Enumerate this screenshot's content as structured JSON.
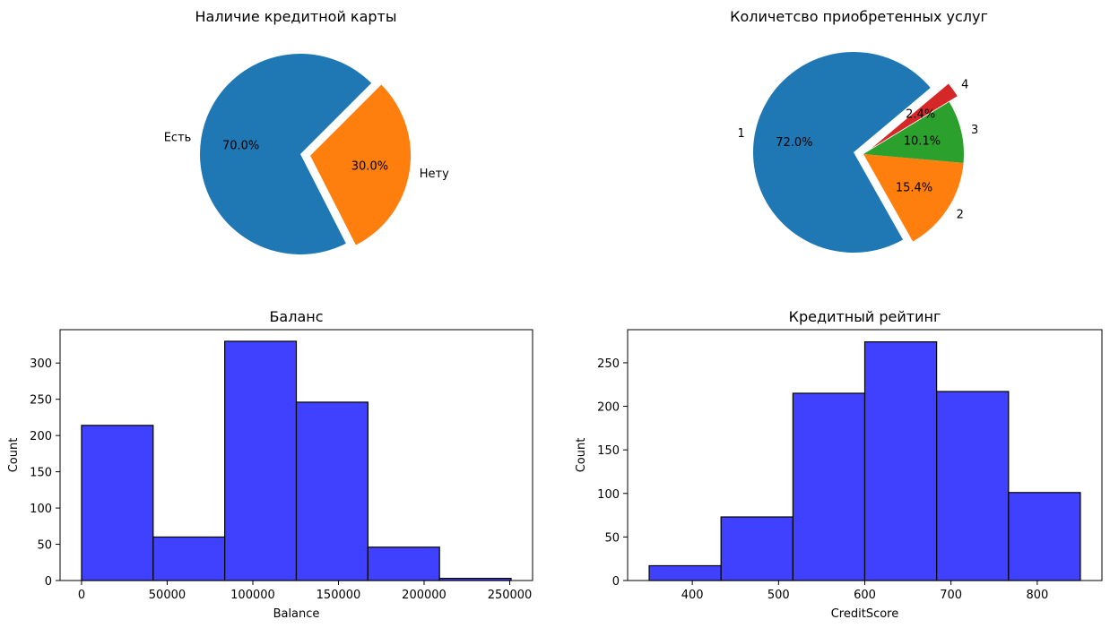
{
  "chart_data": [
    {
      "type": "pie",
      "title": "Наличие кредитной карты",
      "slices": [
        {
          "label": "Есть",
          "pct_label": "70.0%",
          "value": 70.0,
          "color": "#1f77b4",
          "explode": 0
        },
        {
          "label": "Нету",
          "pct_label": "30.0%",
          "value": 30.0,
          "color": "#ff7f0e",
          "explode": 1
        }
      ],
      "startangle_deg": 45
    },
    {
      "type": "pie",
      "title": "Количетсво приобретенных услуг",
      "slices": [
        {
          "label": "1",
          "pct_label": "72.0%",
          "value": 72.0,
          "color": "#1f77b4",
          "explode": 1
        },
        {
          "label": "2",
          "pct_label": "15.4%",
          "value": 15.4,
          "color": "#ff7f0e",
          "explode": 0
        },
        {
          "label": "3",
          "pct_label": "10.1%",
          "value": 10.1,
          "color": "#2ca02c",
          "explode": 0
        },
        {
          "label": "4",
          "pct_label": "2.4%",
          "value": 2.4,
          "color": "#d62728",
          "explode": 1
        }
      ],
      "startangle_deg": 40
    },
    {
      "type": "bar",
      "title": "Баланс",
      "xlabel": "Balance",
      "ylabel": "Count",
      "bin_edges": [
        0,
        41800,
        83600,
        125400,
        167200,
        209000,
        250800
      ],
      "counts": [
        214,
        60,
        330,
        246,
        46,
        3
      ],
      "xlim": [
        -12540,
        263340
      ],
      "ylim": [
        0,
        346
      ],
      "xticks": [
        0,
        50000,
        100000,
        150000,
        200000,
        250000
      ],
      "yticks": [
        0,
        50,
        100,
        150,
        200,
        250,
        300
      ],
      "color": "#4040ff"
    },
    {
      "type": "bar",
      "title": "Кредитный рейтинг",
      "xlabel": "CreditScore",
      "ylabel": "Count",
      "bin_edges": [
        350,
        433.3,
        516.7,
        600,
        683.3,
        766.7,
        850
      ],
      "counts": [
        17,
        73,
        215,
        274,
        217,
        101
      ],
      "xlim": [
        325,
        875
      ],
      "ylim": [
        0,
        288
      ],
      "xticks": [
        400,
        500,
        600,
        700,
        800
      ],
      "yticks": [
        0,
        50,
        100,
        150,
        200,
        250
      ],
      "color": "#4040ff"
    }
  ]
}
